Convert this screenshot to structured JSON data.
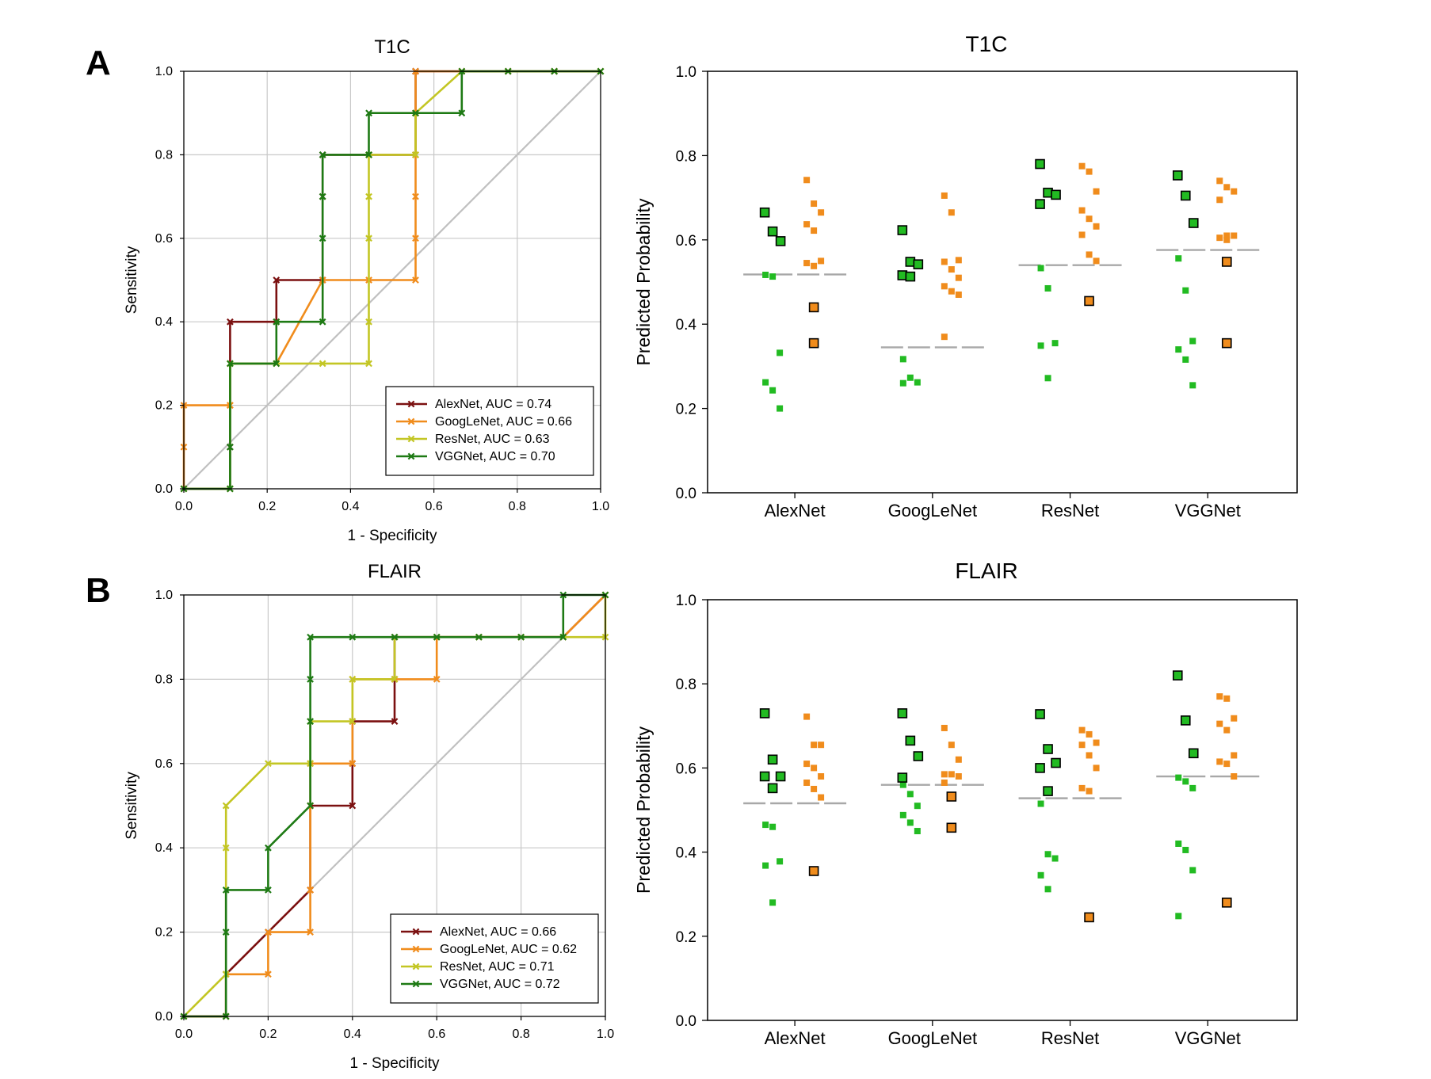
{
  "colors": {
    "AlexNet": "#7b1010",
    "GoogLeNet": "#f08c1c",
    "ResNet": "#c3c624",
    "VGGNet": "#1e7a14",
    "grid": "#c8c8c8",
    "diagonal": "#c0c0c0",
    "green_point": "#22bb22",
    "orange_point": "#f08c1c",
    "mean_line": "#a8a8a8"
  },
  "panel_letters": [
    "A",
    "B"
  ],
  "chart_data": [
    {
      "id": "roc_t1c",
      "type": "line",
      "panel": "A",
      "title": "T1C",
      "xlabel": "1 - Specificity",
      "ylabel": "Sensitivity",
      "xlim": [
        0,
        1
      ],
      "ylim": [
        0,
        1
      ],
      "xticks": [
        "0.0",
        "0.2",
        "0.4",
        "0.6",
        "0.8",
        "1.0"
      ],
      "yticks": [
        "0.0",
        "0.2",
        "0.4",
        "0.6",
        "0.8",
        "1.0"
      ],
      "grid": true,
      "diagonal": true,
      "legend_position": "bottom-right",
      "series": [
        {
          "name": "AlexNet",
          "label": "AlexNet, AUC = 0.74",
          "x": [
            0,
            0.111,
            0.111,
            0.111,
            0.222,
            0.222,
            0.333,
            0.333,
            0.333,
            0.444,
            0.556,
            0.556,
            0.556,
            0.556,
            0.667,
            0.778,
            0.889,
            1.0
          ],
          "y": [
            0,
            0,
            0.1,
            0.4,
            0.4,
            0.5,
            0.5,
            0.7,
            0.8,
            0.8,
            0.8,
            0.9,
            1.0,
            1.0,
            1.0,
            1.0,
            1.0,
            1.0
          ]
        },
        {
          "name": "GoogLeNet",
          "label": "GoogLeNet, AUC = 0.66",
          "x": [
            0,
            0,
            0,
            0.111,
            0.111,
            0.111,
            0.222,
            0.333,
            0.444,
            0.556,
            0.556,
            0.556,
            0.556,
            0.556,
            0.556,
            0.667,
            0.778,
            0.889,
            1.0
          ],
          "y": [
            0,
            0.1,
            0.2,
            0.2,
            0.2,
            0.3,
            0.3,
            0.5,
            0.5,
            0.5,
            0.6,
            0.7,
            0.8,
            0.9,
            1.0,
            1.0,
            1.0,
            1.0,
            1.0
          ]
        },
        {
          "name": "ResNet",
          "label": "ResNet, AUC = 0.63",
          "x": [
            0,
            0.111,
            0.111,
            0.222,
            0.333,
            0.444,
            0.444,
            0.444,
            0.444,
            0.444,
            0.444,
            0.556,
            0.556,
            0.667,
            0.778,
            0.889,
            1.0
          ],
          "y": [
            0,
            0,
            0.3,
            0.3,
            0.3,
            0.3,
            0.4,
            0.6,
            0.7,
            0.8,
            0.8,
            0.8,
            0.9,
            1.0,
            1.0,
            1.0,
            1.0
          ]
        },
        {
          "name": "VGGNet",
          "label": "VGGNet, AUC = 0.70",
          "x": [
            0,
            0.111,
            0.111,
            0.111,
            0.222,
            0.222,
            0.333,
            0.333,
            0.333,
            0.333,
            0.444,
            0.444,
            0.556,
            0.667,
            0.667,
            0.778,
            0.889,
            1.0
          ],
          "y": [
            0,
            0,
            0.1,
            0.3,
            0.3,
            0.4,
            0.4,
            0.6,
            0.7,
            0.8,
            0.8,
            0.9,
            0.9,
            0.9,
            1.0,
            1.0,
            1.0,
            1.0
          ]
        }
      ]
    },
    {
      "id": "dot_t1c",
      "type": "scatter",
      "panel": "A",
      "title": "T1C",
      "xlabel": "",
      "ylabel": "Predicted Probability",
      "ylim": [
        0,
        1
      ],
      "yticks": [
        "0.0",
        "0.2",
        "0.4",
        "0.6",
        "0.8",
        "1.0"
      ],
      "categories": [
        "AlexNet",
        "GoogLeNet",
        "ResNet",
        "VGGNet"
      ],
      "groups": [
        {
          "category": "AlexNet",
          "threshold": 0.518,
          "green_large": [
            0.665,
            0.62,
            0.597
          ],
          "green_small": [
            0.517,
            0.513,
            0.332,
            0.262,
            0.243,
            0.2
          ],
          "orange_small": [
            0.742,
            0.686,
            0.665,
            0.637,
            0.622,
            0.55,
            0.545,
            0.538
          ],
          "orange_large": [
            0.44,
            0.355
          ]
        },
        {
          "category": "GoogLeNet",
          "threshold": 0.345,
          "green_large": [
            0.623,
            0.548,
            0.542,
            0.516,
            0.513
          ],
          "green_small": [
            0.317,
            0.273,
            0.262,
            0.26
          ],
          "orange_small": [
            0.705,
            0.665,
            0.552,
            0.548,
            0.53,
            0.51,
            0.49,
            0.478,
            0.47,
            0.37
          ],
          "orange_large": []
        },
        {
          "category": "ResNet",
          "threshold": 0.54,
          "green_large": [
            0.78,
            0.712,
            0.707,
            0.685
          ],
          "green_small": [
            0.533,
            0.485,
            0.355,
            0.349,
            0.272
          ],
          "orange_small": [
            0.775,
            0.762,
            0.715,
            0.67,
            0.65,
            0.632,
            0.612,
            0.565,
            0.55
          ],
          "orange_large": [
            0.455
          ]
        },
        {
          "category": "VGGNet",
          "threshold": 0.576,
          "green_large": [
            0.753,
            0.705,
            0.64
          ],
          "green_small": [
            0.556,
            0.48,
            0.36,
            0.34,
            0.316,
            0.255
          ],
          "orange_small": [
            0.74,
            0.725,
            0.715,
            0.695,
            0.61,
            0.61,
            0.605,
            0.6
          ],
          "orange_large": [
            0.548,
            0.355
          ]
        }
      ]
    },
    {
      "id": "roc_flair",
      "type": "line",
      "panel": "B",
      "title": "FLAIR",
      "xlabel": "1 - Specificity",
      "ylabel": "Sensitivity",
      "xlim": [
        0,
        1
      ],
      "ylim": [
        0,
        1
      ],
      "xticks": [
        "0.0",
        "0.2",
        "0.4",
        "0.6",
        "0.8",
        "1.0"
      ],
      "yticks": [
        "0.0",
        "0.2",
        "0.4",
        "0.6",
        "0.8",
        "1.0"
      ],
      "grid": true,
      "diagonal": true,
      "legend_position": "bottom-right",
      "series": [
        {
          "name": "AlexNet",
          "label": "AlexNet, AUC = 0.66",
          "x": [
            0,
            0.1,
            0.1,
            0.2,
            0.3,
            0.3,
            0.4,
            0.4,
            0.4,
            0.5,
            0.5,
            0.5,
            0.6,
            0.7,
            0.8,
            0.9,
            1.0
          ],
          "y": [
            0,
            0,
            0.1,
            0.2,
            0.3,
            0.5,
            0.5,
            0.6,
            0.7,
            0.7,
            0.8,
            0.9,
            0.9,
            0.9,
            0.9,
            0.9,
            1.0
          ]
        },
        {
          "name": "GoogLeNet",
          "label": "GoogLeNet, AUC = 0.62",
          "x": [
            0,
            0.1,
            0.1,
            0.2,
            0.2,
            0.3,
            0.3,
            0.3,
            0.3,
            0.4,
            0.4,
            0.5,
            0.6,
            0.6,
            0.7,
            0.8,
            0.9,
            1.0
          ],
          "y": [
            0,
            0,
            0.1,
            0.1,
            0.2,
            0.2,
            0.3,
            0.5,
            0.6,
            0.6,
            0.8,
            0.8,
            0.8,
            0.9,
            0.9,
            0.9,
            0.9,
            1.0
          ]
        },
        {
          "name": "ResNet",
          "label": "ResNet, AUC = 0.71",
          "x": [
            0,
            0.1,
            0.1,
            0.1,
            0.2,
            0.3,
            0.3,
            0.4,
            0.4,
            0.5,
            0.5,
            0.6,
            0.7,
            0.8,
            0.9,
            1.0,
            1.0
          ],
          "y": [
            0,
            0.1,
            0.4,
            0.5,
            0.6,
            0.6,
            0.7,
            0.7,
            0.8,
            0.8,
            0.9,
            0.9,
            0.9,
            0.9,
            0.9,
            0.9,
            1.0
          ]
        },
        {
          "name": "VGGNet",
          "label": "VGGNet, AUC = 0.72",
          "x": [
            0,
            0.1,
            0.1,
            0.1,
            0.2,
            0.2,
            0.3,
            0.3,
            0.3,
            0.3,
            0.4,
            0.5,
            0.6,
            0.7,
            0.8,
            0.9,
            0.9,
            1.0
          ],
          "y": [
            0,
            0,
            0.2,
            0.3,
            0.3,
            0.4,
            0.5,
            0.7,
            0.8,
            0.9,
            0.9,
            0.9,
            0.9,
            0.9,
            0.9,
            0.9,
            1.0,
            1.0
          ]
        }
      ]
    },
    {
      "id": "dot_flair",
      "type": "scatter",
      "panel": "B",
      "title": "FLAIR",
      "xlabel": "",
      "ylabel": "Predicted Probability",
      "ylim": [
        0,
        1
      ],
      "yticks": [
        "0.0",
        "0.2",
        "0.4",
        "0.6",
        "0.8",
        "1.0"
      ],
      "categories": [
        "AlexNet",
        "GoogLeNet",
        "ResNet",
        "VGGNet"
      ],
      "groups": [
        {
          "category": "AlexNet",
          "threshold": 0.516,
          "green_large": [
            0.73,
            0.62,
            0.58,
            0.58,
            0.552
          ],
          "green_small": [
            0.465,
            0.46,
            0.378,
            0.368,
            0.28
          ],
          "orange_small": [
            0.722,
            0.655,
            0.655,
            0.61,
            0.6,
            0.58,
            0.565,
            0.55,
            0.53
          ],
          "orange_large": [
            0.355
          ]
        },
        {
          "category": "GoogLeNet",
          "threshold": 0.56,
          "green_large": [
            0.73,
            0.665,
            0.628,
            0.577
          ],
          "green_small": [
            0.56,
            0.538,
            0.51,
            0.488,
            0.47,
            0.45
          ],
          "orange_small": [
            0.695,
            0.655,
            0.62,
            0.585,
            0.585,
            0.58,
            0.565
          ],
          "orange_large": [
            0.532,
            0.458
          ]
        },
        {
          "category": "ResNet",
          "threshold": 0.528,
          "green_large": [
            0.728,
            0.645,
            0.612,
            0.6,
            0.545
          ],
          "green_small": [
            0.515,
            0.395,
            0.385,
            0.345,
            0.312
          ],
          "orange_small": [
            0.69,
            0.68,
            0.66,
            0.655,
            0.63,
            0.6,
            0.552,
            0.545
          ],
          "orange_large": [
            0.245
          ]
        },
        {
          "category": "VGGNet",
          "threshold": 0.58,
          "green_large": [
            0.82,
            0.713,
            0.635
          ],
          "green_small": [
            0.577,
            0.568,
            0.552,
            0.42,
            0.405,
            0.357,
            0.248
          ],
          "orange_small": [
            0.77,
            0.765,
            0.718,
            0.705,
            0.69,
            0.63,
            0.615,
            0.61,
            0.58
          ],
          "orange_large": [
            0.28
          ]
        }
      ]
    }
  ]
}
